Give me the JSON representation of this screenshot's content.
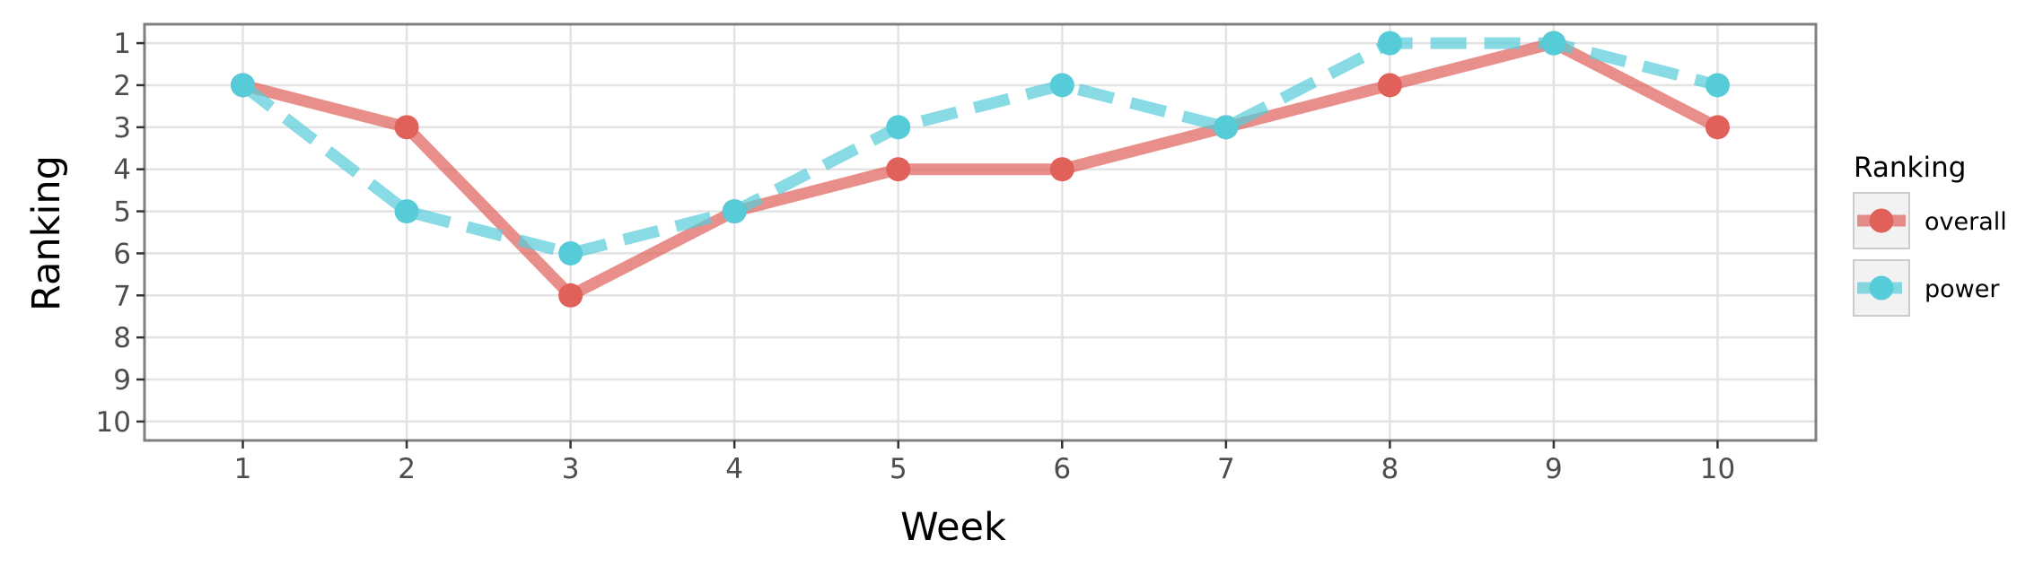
{
  "chart_data": {
    "type": "line",
    "xlabel": "Week",
    "ylabel": "Ranking",
    "x": [
      1,
      2,
      3,
      4,
      5,
      6,
      7,
      8,
      9,
      10
    ],
    "xlim": [
      0.4,
      10.6
    ],
    "ylim": [
      10.45,
      0.55
    ],
    "y_reversed": true,
    "x_ticks": [
      1,
      2,
      3,
      4,
      5,
      6,
      7,
      8,
      9,
      10
    ],
    "y_ticks": [
      1,
      2,
      3,
      4,
      5,
      6,
      7,
      8,
      9,
      10
    ],
    "grid": true,
    "legend": {
      "title": "Ranking",
      "placement": "right"
    },
    "series": [
      {
        "name": "overall",
        "color": "#e0605a",
        "line_style": "solid",
        "values": [
          2,
          3,
          7,
          5,
          4,
          4,
          3,
          2,
          1,
          3
        ]
      },
      {
        "name": "power",
        "color": "#55ccd8",
        "line_style": "dashed",
        "values": [
          2,
          5,
          6,
          5,
          3,
          2,
          3,
          1,
          1,
          2
        ]
      }
    ]
  }
}
